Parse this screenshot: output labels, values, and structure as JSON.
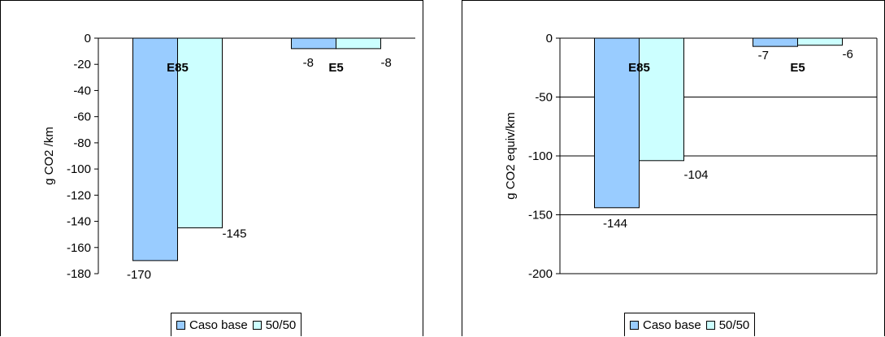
{
  "chart_data": [
    {
      "type": "bar",
      "categories": [
        "E85",
        "E5"
      ],
      "series": [
        {
          "name": "Caso base",
          "values": [
            -170,
            -8
          ]
        },
        {
          "name": "50/50",
          "values": [
            -145,
            -8
          ]
        }
      ],
      "ylabel": "g CO2 /km",
      "ylim": [
        -180,
        0
      ],
      "yticks": [
        0,
        -20,
        -40,
        -60,
        -80,
        -100,
        -120,
        -140,
        -160,
        -180
      ],
      "data_labels": [
        [
          "-170",
          "-8"
        ],
        [
          "-145",
          "-8"
        ]
      ],
      "grid": false,
      "legend": "bottom"
    },
    {
      "type": "bar",
      "categories": [
        "E85",
        "E5"
      ],
      "series": [
        {
          "name": "Caso base",
          "values": [
            -144,
            -7
          ]
        },
        {
          "name": "50/50",
          "values": [
            -104,
            -6
          ]
        }
      ],
      "ylabel": "g CO2 equiv/km",
      "ylim": [
        -200,
        0
      ],
      "yticks": [
        0,
        -50,
        -100,
        -150,
        -200
      ],
      "data_labels": [
        [
          "-144",
          "-7"
        ],
        [
          "-104",
          "-6"
        ]
      ],
      "grid": true,
      "legend": "bottom"
    }
  ],
  "colors": {
    "caso_base": "#99ccff",
    "fifty_fifty": "#ccffff",
    "axis": "#000000"
  }
}
